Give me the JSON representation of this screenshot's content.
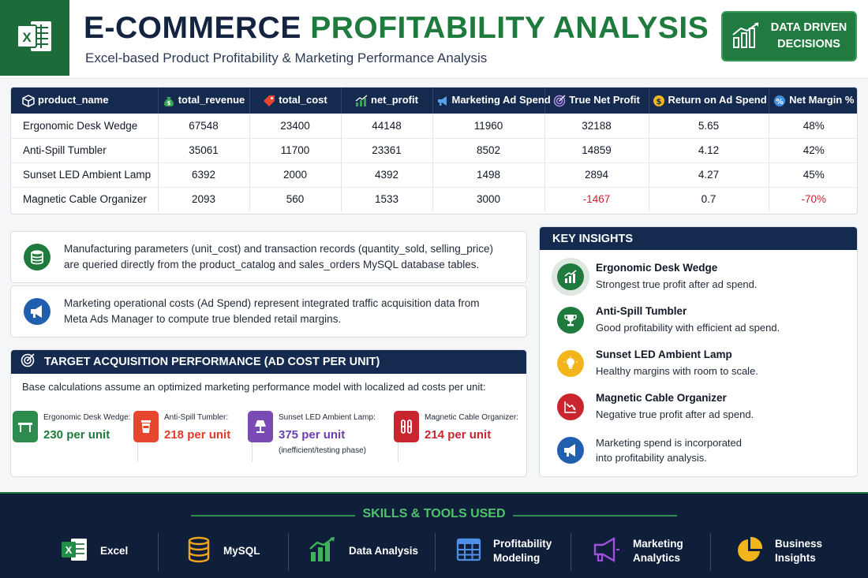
{
  "header": {
    "title_part1": "E-COMMERCE",
    "title_part2": "PROFITABILITY ANALYSIS",
    "subtitle": "Excel-based Product Profitability & Marketing Performance Analysis",
    "badge_line1": "DATA DRIVEN",
    "badge_line2": "DECISIONS",
    "logo_icon": "excel-icon",
    "badge_icon": "bar-chart-trend-icon"
  },
  "colors": {
    "navy": "#142a4f",
    "green": "#1f7a3d",
    "negative": "#d0202c"
  },
  "table": {
    "headers": [
      "product_name",
      "total_revenue",
      "total_cost",
      "net_profit",
      "Marketing Ad Spend",
      "True Net Profit",
      "Return on Ad Spend",
      "Net Margin %"
    ],
    "header_icons": [
      "cube-icon",
      "money-bag-icon",
      "price-tag-icon",
      "growth-chart-icon",
      "megaphone-icon",
      "target-icon",
      "coin-icon",
      "percent-icon"
    ],
    "rows": [
      [
        "Ergonomic Desk Wedge",
        "67548",
        "23400",
        "44148",
        "11960",
        "32188",
        "5.65",
        "48%"
      ],
      [
        "Anti-Spill Tumbler",
        "35061",
        "11700",
        "23361",
        "8502",
        "14859",
        "4.12",
        "42%"
      ],
      [
        "Sunset LED Ambient Lamp",
        "6392",
        "2000",
        "4392",
        "1498",
        "2894",
        "4.27",
        "45%"
      ],
      [
        "Magnetic Cable Organizer",
        "2093",
        "560",
        "1533",
        "3000",
        "-1467",
        "0.7",
        "-70%"
      ]
    ]
  },
  "notes": [
    {
      "icon": "database-icon",
      "line1": "Manufacturing parameters (unit_cost) and transaction records (quantity_sold, selling_price)",
      "line2": "are queried directly from the product_catalog and sales_orders MySQL database tables."
    },
    {
      "icon": "megaphone-icon",
      "line1": "Marketing operational costs (Ad Spend) represent integrated traffic acquisition data from",
      "line2": "Meta Ads Manager to compute true blended retail margins."
    }
  ],
  "acquisition": {
    "title": "TARGET ACQUISITION PERFORMANCE (AD COST PER UNIT)",
    "description": "Base calculations assume an optimized marketing performance model with localized ad costs per unit:",
    "units": [
      {
        "label": "Ergonomic Desk Wedge:",
        "value": "230 per unit",
        "note": "",
        "icon": "desk-icon",
        "color": "#2e8b4e"
      },
      {
        "label": "Anti-Spill Tumbler:",
        "value": "218 per unit",
        "note": "",
        "icon": "cup-icon",
        "color": "#e8452f"
      },
      {
        "label": "Sunset LED Ambient Lamp:",
        "value": "375 per unit",
        "note": "(inefficient/testing phase)",
        "icon": "lamp-icon",
        "color": "#7a4bb5"
      },
      {
        "label": "Magnetic Cable Organizer:",
        "value": "214 per unit",
        "note": "",
        "icon": "cable-clip-icon",
        "color": "#c8252f"
      }
    ]
  },
  "insights": {
    "title": "KEY INSIGHTS",
    "items": [
      {
        "title": "Ergonomic Desk Wedge",
        "desc": "Strongest true profit after ad spend.",
        "desc2": "",
        "icon": "growth-chart-icon",
        "color": "#1f7a3d"
      },
      {
        "title": "Anti-Spill Tumbler",
        "desc": "Good profitability with efficient ad spend.",
        "desc2": "",
        "icon": "trophy-icon",
        "color": "#1f7a3d"
      },
      {
        "title": "Sunset LED Ambient Lamp",
        "desc": "Healthy margins with room to scale.",
        "desc2": "",
        "icon": "lightbulb-icon",
        "color": "#f2b61c"
      },
      {
        "title": "Magnetic Cable Organizer",
        "desc": "Negative true profit after ad spend.",
        "desc2": "",
        "icon": "decline-chart-icon",
        "color": "#c8252f"
      },
      {
        "title": "",
        "desc": "Marketing spend is incorporated",
        "desc2": "into profitability analysis.",
        "icon": "megaphone-icon",
        "color": "#1f5fae"
      }
    ]
  },
  "footer": {
    "title": "SKILLS & TOOLS USED",
    "skills": [
      {
        "line1": "Excel",
        "line2": "",
        "icon": "excel-icon"
      },
      {
        "line1": "MySQL",
        "line2": "",
        "icon": "database-icon"
      },
      {
        "line1": "Data Analysis",
        "line2": "",
        "icon": "bar-chart-icon"
      },
      {
        "line1": "Profitability",
        "line2": "Modeling",
        "icon": "spreadsheet-grid-icon"
      },
      {
        "line1": "Marketing",
        "line2": "Analytics",
        "icon": "megaphone-icon"
      },
      {
        "line1": "Business",
        "line2": "Insights",
        "icon": "pie-chart-icon"
      }
    ]
  }
}
